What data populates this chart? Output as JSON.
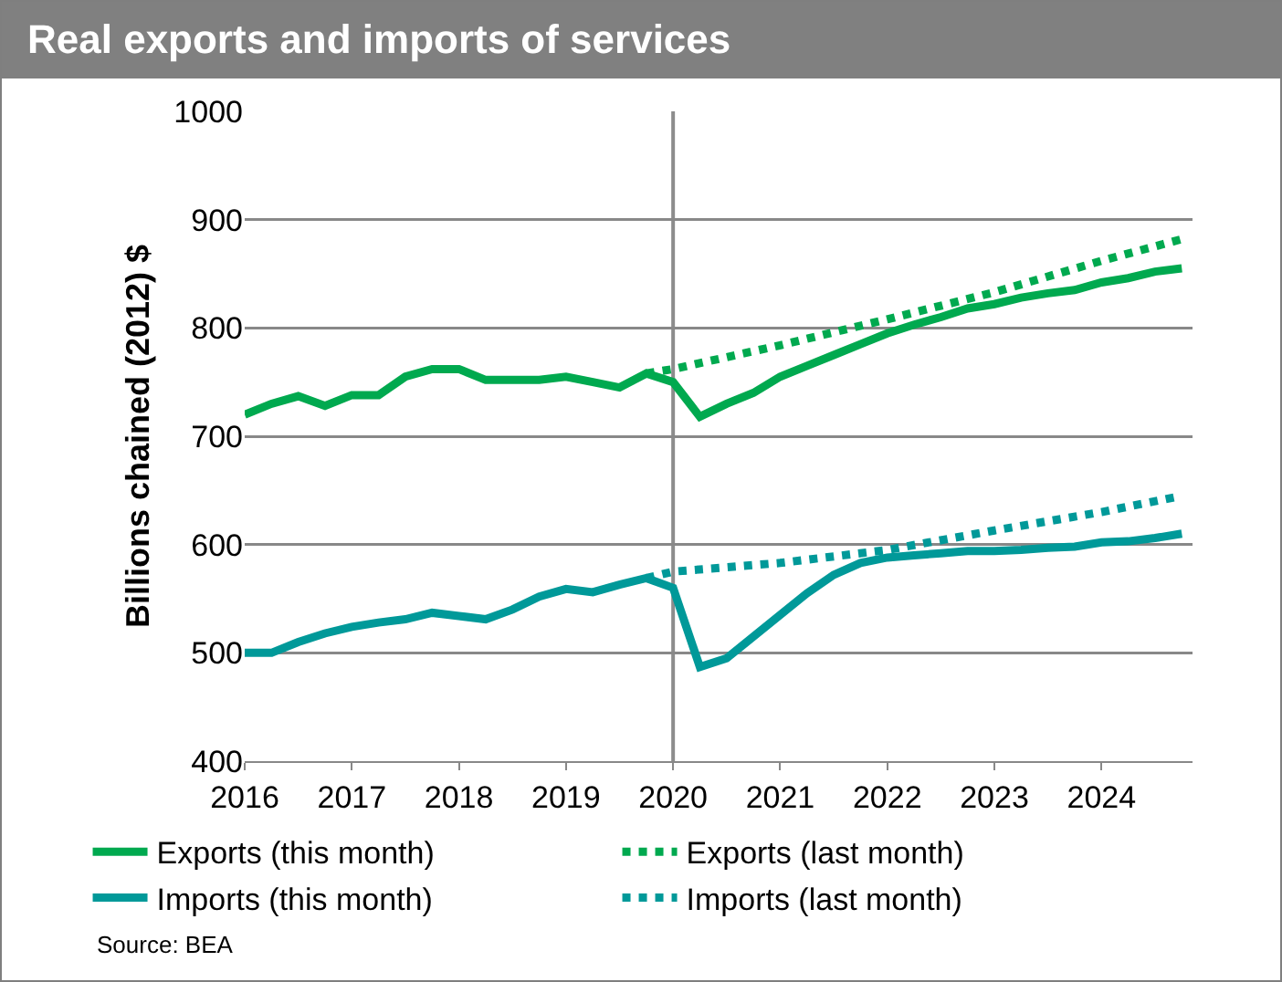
{
  "chart_data": {
    "type": "line",
    "title": "Real exports and imports of services",
    "ylabel": "Billions chained (2012) $",
    "xlim": [
      2016,
      2024.85
    ],
    "xticks": [
      2016,
      2017,
      2018,
      2019,
      2020,
      2021,
      2022,
      2023,
      2024
    ],
    "ylim": [
      400,
      1000
    ],
    "yticks": [
      400,
      500,
      600,
      700,
      800,
      900,
      1000
    ],
    "grid": "y",
    "legend": "bottom",
    "ref_lines": [
      {
        "axis": "x",
        "value": 2020,
        "color": "#8c8c8c"
      }
    ],
    "series": [
      {
        "name": "Exports (this month)",
        "color": "#00a94f",
        "line_style": "solid",
        "x": [
          2016,
          2016.25,
          2016.5,
          2016.75,
          2017,
          2017.25,
          2017.5,
          2017.75,
          2018,
          2018.25,
          2018.5,
          2018.75,
          2019,
          2019.25,
          2019.5,
          2019.75,
          2020,
          2020.25,
          2020.5,
          2020.75,
          2021,
          2021.25,
          2021.5,
          2021.75,
          2022,
          2022.25,
          2022.5,
          2022.75,
          2023,
          2023.25,
          2023.5,
          2023.75,
          2024,
          2024.25,
          2024.5,
          2024.75
        ],
        "values": [
          720,
          730,
          737,
          728,
          738,
          738,
          755,
          762,
          762,
          752,
          752,
          752,
          755,
          750,
          745,
          758,
          750,
          718,
          730,
          740,
          755,
          765,
          775,
          785,
          795,
          803,
          810,
          818,
          822,
          828,
          832,
          835,
          842,
          846,
          852,
          855
        ]
      },
      {
        "name": "Exports (last month)",
        "color": "#00a94f",
        "line_style": "dotted",
        "x": [
          2019.75,
          2020,
          2021,
          2022,
          2023,
          2024,
          2024.75
        ],
        "values": [
          758,
          762,
          784,
          808,
          833,
          862,
          882
        ]
      },
      {
        "name": "Imports (this month)",
        "color": "#009999",
        "line_style": "solid",
        "x": [
          2016,
          2016.25,
          2016.5,
          2016.75,
          2017,
          2017.25,
          2017.5,
          2017.75,
          2018,
          2018.25,
          2018.5,
          2018.75,
          2019,
          2019.25,
          2019.5,
          2019.75,
          2020,
          2020.25,
          2020.5,
          2020.75,
          2021,
          2021.25,
          2021.5,
          2021.75,
          2022,
          2022.25,
          2022.5,
          2022.75,
          2023,
          2023.25,
          2023.5,
          2023.75,
          2024,
          2024.25,
          2024.5,
          2024.75
        ],
        "values": [
          500,
          500,
          510,
          518,
          524,
          528,
          531,
          537,
          534,
          531,
          540,
          552,
          559,
          556,
          563,
          569,
          560,
          487,
          495,
          515,
          535,
          555,
          572,
          583,
          588,
          590,
          592,
          594,
          594,
          595,
          597,
          598,
          602,
          603,
          606,
          610
        ]
      },
      {
        "name": "Imports (last month)",
        "color": "#009999",
        "line_style": "dotted",
        "x": [
          2019.75,
          2020,
          2021,
          2022,
          2023,
          2024,
          2024.75
        ],
        "values": [
          569,
          575,
          583,
          595,
          613,
          630,
          645
        ]
      }
    ],
    "annotations": [
      "Source: BEA"
    ]
  }
}
